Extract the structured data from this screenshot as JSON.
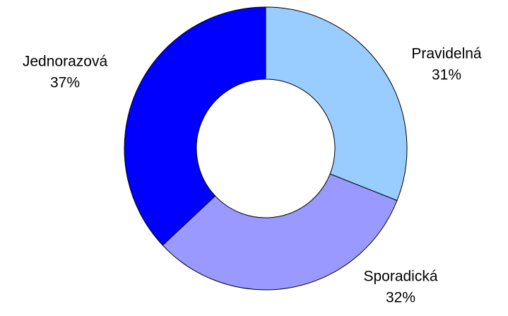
{
  "chart_data": {
    "type": "donut",
    "categories": [
      "Pravidelná",
      "Sporadická",
      "Jednorazová"
    ],
    "values": [
      31,
      32,
      37
    ],
    "value_labels": [
      "31%",
      "32%",
      "37%"
    ],
    "colors": [
      "#99ccff",
      "#9999ff",
      "#0000ff"
    ]
  }
}
